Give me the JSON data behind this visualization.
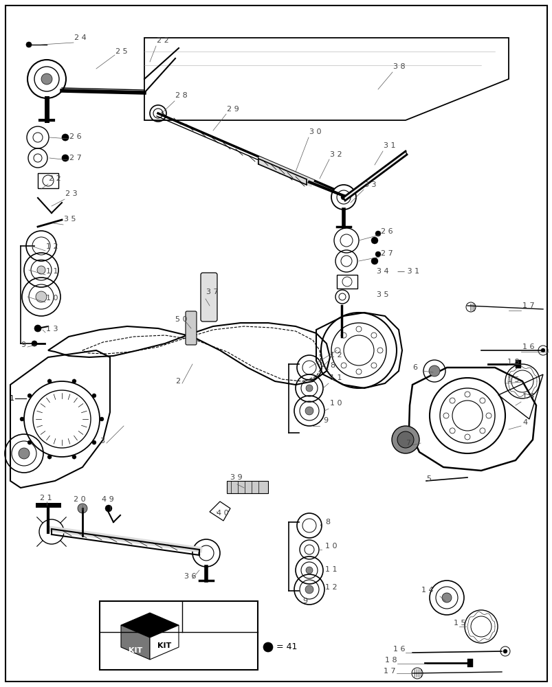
{
  "bg_color": "#ffffff",
  "border_color": "#000000",
  "line_color": "#000000",
  "fig_width": 8.04,
  "fig_height": 10.0,
  "dpi": 100
}
